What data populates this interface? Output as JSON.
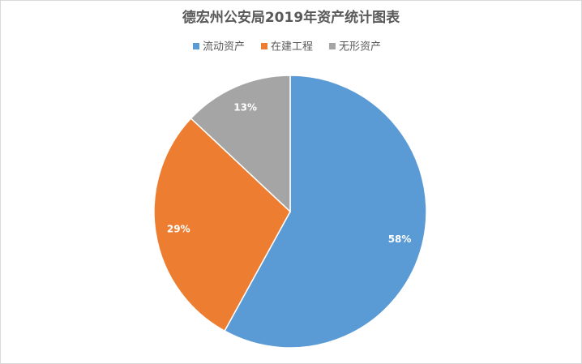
{
  "chart_data": {
    "type": "pie",
    "title": "德宏州公安局2019年资产统计图表",
    "categories": [
      "流动资产",
      "在建工程",
      "无形资产"
    ],
    "values": [
      58,
      29,
      13
    ],
    "value_labels": [
      "58%",
      "29%",
      "13%"
    ],
    "colors": [
      "#5b9bd5",
      "#ed7d31",
      "#a5a5a5"
    ],
    "legend": "top"
  }
}
